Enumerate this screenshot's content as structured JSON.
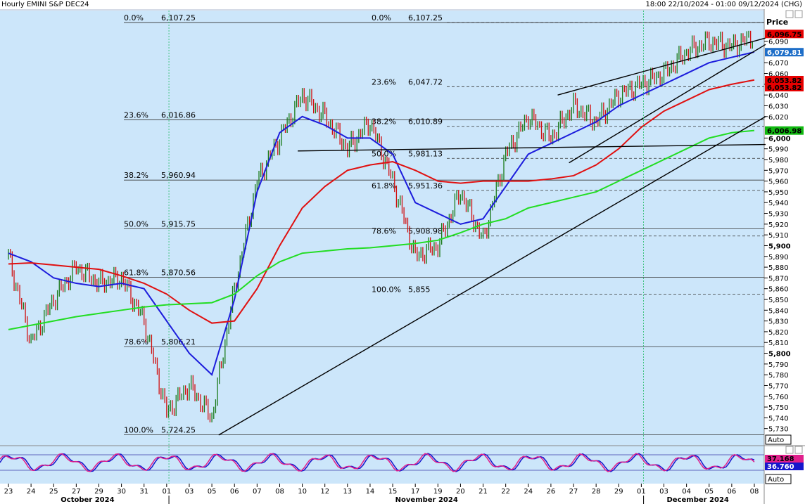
{
  "header": {
    "instrument": "Hourly EMINI S&P DEC24",
    "range": "18:00 22/10/2024 - 01:00 09/12/2024 (CHG)"
  },
  "price_axis": {
    "title": "Price",
    "ticks": [
      "6,090",
      "6,070",
      "6,060",
      "6,050",
      "6,040",
      "6,030",
      "6,020",
      "6,000",
      "5,990",
      "5,980",
      "5,970",
      "5,960",
      "5,950",
      "5,940",
      "5,930",
      "5,920",
      "5,910",
      "5,900",
      "5,890",
      "5,880",
      "5,870",
      "5,860",
      "5,850",
      "5,840",
      "5,830",
      "5,820",
      "5,810",
      "5,800",
      "5,790",
      "5,780",
      "5,770",
      "5,760",
      "5,750",
      "5,740",
      "5,730"
    ],
    "bold_ticks": [
      "6,000",
      "5,900",
      "5,800"
    ],
    "auto_label": "Auto",
    "badges": [
      {
        "label": "6,096.75",
        "bg": "#e60000",
        "fg": "#000000"
      },
      {
        "label": "6,079.81",
        "bg": "#1e6ec8",
        "fg": "#ffffff"
      },
      {
        "label": "6,053.82",
        "bg": "#e60000",
        "fg": "#000000"
      },
      {
        "label": "6,053.82",
        "bg": "#e60000",
        "fg": "#000000"
      },
      {
        "label": "6,006.98",
        "bg": "#11b811",
        "fg": "#000000"
      }
    ]
  },
  "oscillator": {
    "labels": [
      {
        "label": "37.168",
        "bg": "#e0208c",
        "fg": "#000000"
      },
      {
        "label": "36.760",
        "bg": "#1616cc",
        "fg": "#ffffff"
      }
    ],
    "auto_label": "Auto"
  },
  "time_axis": {
    "day_labels": [
      "23",
      "24",
      "25",
      "27",
      "29",
      "30",
      "31",
      "01",
      "03",
      "05",
      "06",
      "07",
      "08",
      "10",
      "12",
      "13",
      "14",
      "15",
      "17",
      "19",
      "20",
      "21",
      "22",
      "24",
      "26",
      "27",
      "28",
      "29",
      "01",
      "03",
      "04",
      "05",
      "06",
      "08"
    ],
    "month_labels": [
      "October 2024",
      "November 2024",
      "December 2024"
    ]
  },
  "colors": {
    "background": "#cce6fa",
    "price_bars": "#1a7a1a",
    "down_bars": "#d01010",
    "ma_blue": "#1c1cdc",
    "ma_red": "#e01010",
    "ma_green": "#22dd22",
    "osc_red": "#e0208c",
    "osc_blue": "#1616cc"
  },
  "chart_data": {
    "type": "line",
    "title": "Hourly EMINI S&P DEC24",
    "xlabel": "",
    "ylabel": "Price",
    "ylim": [
      5720,
      6110
    ],
    "grid": false,
    "x_dates": [
      "2024-10-23",
      "2024-10-24",
      "2024-10-25",
      "2024-10-27",
      "2024-10-29",
      "2024-10-30",
      "2024-10-31",
      "2024-11-01",
      "2024-11-03",
      "2024-11-05",
      "2024-11-06",
      "2024-11-07",
      "2024-11-08",
      "2024-11-10",
      "2024-11-12",
      "2024-11-13",
      "2024-11-14",
      "2024-11-15",
      "2024-11-17",
      "2024-11-19",
      "2024-11-20",
      "2024-11-21",
      "2024-11-22",
      "2024-11-24",
      "2024-11-26",
      "2024-11-27",
      "2024-11-28",
      "2024-11-29",
      "2024-12-01",
      "2024-12-03",
      "2024-12-04",
      "2024-12-05",
      "2024-12-06",
      "2024-12-08"
    ],
    "series": [
      {
        "name": "",
        "color": "#1a7a1a",
        "values": [
          5890,
          5810,
          5850,
          5880,
          5865,
          5870,
          5830,
          5745,
          5770,
          5740,
          5860,
          5960,
          6000,
          6040,
          6020,
          5990,
          6015,
          5960,
          5890,
          5900,
          5950,
          5905,
          5985,
          6020,
          6000,
          6030,
          6015,
          6040,
          6050,
          6060,
          6080,
          6090,
          6085,
          6095
        ]
      },
      {
        "name": "",
        "color": "#1c1cdc",
        "values": [
          5893,
          5885,
          5870,
          5865,
          5862,
          5865,
          5860,
          5830,
          5800,
          5780,
          5850,
          5950,
          6005,
          6020,
          6012,
          6000,
          6000,
          5985,
          5940,
          5930,
          5920,
          5925,
          5955,
          5985,
          5995,
          6005,
          6015,
          6030,
          6040,
          6050,
          6060,
          6070,
          6075,
          6080
        ]
      },
      {
        "name": "",
        "color": "#e01010",
        "values": [
          5883,
          5884,
          5882,
          5880,
          5878,
          5872,
          5865,
          5855,
          5840,
          5828,
          5830,
          5860,
          5900,
          5935,
          5955,
          5970,
          5975,
          5978,
          5970,
          5960,
          5958,
          5960,
          5960,
          5960,
          5962,
          5965,
          5975,
          5990,
          6010,
          6025,
          6035,
          6045,
          6050,
          6054
        ]
      },
      {
        "name": "",
        "color": "#22dd22",
        "values": [
          5822,
          5826,
          5830,
          5834,
          5837,
          5840,
          5843,
          5845,
          5846,
          5847,
          5855,
          5872,
          5885,
          5893,
          5895,
          5897,
          5898,
          5900,
          5902,
          5905,
          5912,
          5920,
          5925,
          5935,
          5940,
          5945,
          5950,
          5960,
          5970,
          5980,
          5990,
          6000,
          6005,
          6007
        ]
      }
    ],
    "fibonacci": [
      {
        "set": "A",
        "levels": [
          {
            "pct": "0.0%",
            "value": "6,107.25"
          },
          {
            "pct": "23.6%",
            "value": "6,016.86"
          },
          {
            "pct": "38.2%",
            "value": "5,960.94"
          },
          {
            "pct": "50.0%",
            "value": "5,915.75"
          },
          {
            "pct": "61.8%",
            "value": "5,870.56"
          },
          {
            "pct": "78.6%",
            "value": "5,806.21"
          },
          {
            "pct": "100.0%",
            "value": "5,724.25"
          }
        ]
      },
      {
        "set": "B",
        "levels": [
          {
            "pct": "0.0%",
            "value": "6,107.25"
          },
          {
            "pct": "23.6%",
            "value": "6,047.72"
          },
          {
            "pct": "38.2%",
            "value": "6,010.89"
          },
          {
            "pct": "50.0%",
            "value": "5,981.13"
          },
          {
            "pct": "61.8%",
            "value": "5,951.36"
          },
          {
            "pct": "78.6%",
            "value": "5,908.98"
          },
          {
            "pct": "100.0%",
            "value": "5,855"
          }
        ]
      }
    ]
  }
}
